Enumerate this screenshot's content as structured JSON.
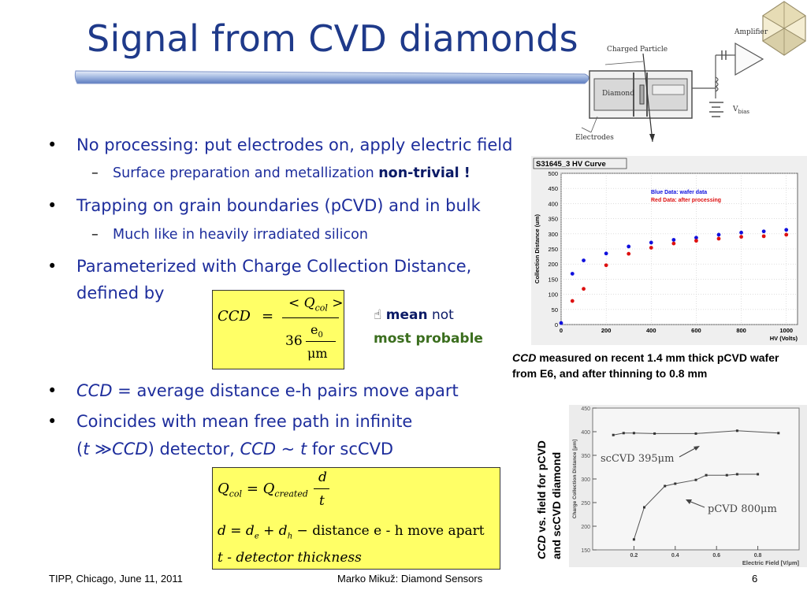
{
  "title": "Signal from CVD diamonds",
  "bullets": [
    {
      "text": "No processing: put electrodes on, apply electric field"
    },
    {
      "text": "Trapping on grain boundaries (pCVD) and in bulk"
    },
    {
      "text_line1": "Parameterized with Charge Collection Distance,",
      "text_line2": "defined by"
    },
    {
      "em": "CCD",
      "rest": " = average distance e-h pairs move apart"
    },
    {
      "line1": "Coincides with mean free path in infinite",
      "line2_pre": "(",
      "t": "t",
      "sym": "≫",
      "ccd": "CCD",
      "line2_mid": ") detector, ",
      "ccd2": "CCD",
      "tilde": " ~ ",
      "t2": "t",
      "line2_post": " for scCVD"
    }
  ],
  "subbullets": [
    {
      "text": "Surface preparation and metallization ",
      "bold": "non-trivial !"
    },
    {
      "text": "Much like in heavily irradiated silicon"
    }
  ],
  "note": {
    "icon": "hand-pointing-icon",
    "mean": "mean",
    "not": " not",
    "mostprob": "most probable"
  },
  "formula1": {
    "lhs": "CCD",
    "eq": "=",
    "num": "< Q",
    "num_sub": "col",
    "num_close": " >",
    "den_num": "36",
    "den_frac_top": "e",
    "den_frac_top_sub": "0",
    "den_frac_bot": "μm"
  },
  "formula2": {
    "line1_lhs": "Q",
    "line1_lhs_sub": "col",
    "line1_eq": "=",
    "line1_rhs": "Q",
    "line1_rhs_sub": "created",
    "frac_top": "d",
    "frac_bot": "t",
    "line2": "d = d",
    "line2_e": "e",
    "line2_plus": " + d",
    "line2_h": "h",
    "line2_rest": " − distance e - h move apart",
    "line3": "t - detector thickness"
  },
  "diagram": {
    "amplifier": "Amplifier",
    "charged_particle": "Charged Particle",
    "diamond": "Diamond",
    "electrodes": "Electrodes",
    "vbias": "V",
    "vbias_sub": "bias"
  },
  "caption1": {
    "em": "CCD",
    "rest": " measured on recent 1.4 mm thick pCVD wafer from E6, and after thinning to 0.8 mm"
  },
  "caption2": {
    "em": "CCD",
    "rest1": " vs. field for pCVD",
    "rest2": "and scCVD diamond"
  },
  "footer": {
    "left": "TIPP, Chicago, June 11, 2011",
    "center": "Marko Mikuž: Diamond Sensors",
    "page": "6"
  },
  "chart_data": [
    {
      "type": "scatter",
      "title": "S31645_3 HV Curve",
      "xlabel": "HV (Volts)",
      "ylabel": "Collection Distance (um)",
      "xlim": [
        0,
        1050
      ],
      "ylim": [
        0,
        500
      ],
      "xticks": [
        "0",
        "200",
        "400",
        "600",
        "800",
        "1000"
      ],
      "yticks": [
        "0",
        "50",
        "100",
        "150",
        "200",
        "250",
        "300",
        "350",
        "400",
        "450",
        "500"
      ],
      "legend": [
        "Blue Data: wafer data",
        "Red Data: after processing"
      ],
      "series": [
        {
          "name": "Blue Data: wafer data",
          "color": "#1010dd",
          "x": [
            0,
            50,
            100,
            200,
            300,
            400,
            500,
            600,
            700,
            800,
            900,
            1000
          ],
          "y": [
            5,
            168,
            212,
            235,
            258,
            271,
            280,
            287,
            297,
            304,
            308,
            313
          ]
        },
        {
          "name": "Red Data: after processing",
          "color": "#dd1010",
          "x": [
            50,
            100,
            200,
            300,
            400,
            500,
            600,
            700,
            800,
            900,
            1000
          ],
          "y": [
            78,
            118,
            196,
            234,
            254,
            268,
            277,
            284,
            290,
            292,
            297
          ]
        }
      ]
    },
    {
      "type": "line",
      "xlabel": "Electric Field [V/μm]",
      "ylabel": "Charge Collection Distance [μm]",
      "xlim": [
        0,
        1.0
      ],
      "ylim": [
        150,
        450
      ],
      "xticks": [
        "0.2",
        "0.4",
        "0.6",
        "0.8"
      ],
      "yticks": [
        "150",
        "200",
        "250",
        "300",
        "350",
        "400",
        "450"
      ],
      "series": [
        {
          "name": "scCVD 395μm",
          "x": [
            0.1,
            0.15,
            0.2,
            0.3,
            0.5,
            0.7,
            0.9
          ],
          "y": [
            393,
            397,
            397,
            396,
            396,
            402,
            397
          ]
        },
        {
          "name": "pCVD 800μm",
          "x": [
            0.2,
            0.25,
            0.35,
            0.4,
            0.5,
            0.55,
            0.65,
            0.7,
            0.8
          ],
          "y": [
            172,
            240,
            285,
            290,
            298,
            308,
            308,
            310,
            310
          ]
        }
      ]
    }
  ]
}
